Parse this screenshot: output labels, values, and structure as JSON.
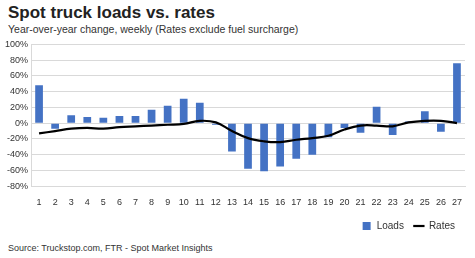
{
  "chart_data": {
    "type": "bar",
    "title": "Spot truck loads vs. rates",
    "subtitle": "Year-over-year change, weekly (Rates exclude fuel surcharge)",
    "source": "Source: Truckstop.com, FTR - Spot Market Insights",
    "categories": [
      "1",
      "2",
      "3",
      "4",
      "5",
      "6",
      "7",
      "8",
      "9",
      "10",
      "11",
      "12",
      "13",
      "14",
      "15",
      "16",
      "17",
      "18",
      "19",
      "20",
      "21",
      "22",
      "23",
      "24",
      "25",
      "26",
      "27"
    ],
    "series": [
      {
        "name": "Loads",
        "type": "bar",
        "color": "#4472c4",
        "values": [
          48,
          -7,
          10,
          8,
          7,
          9,
          9,
          17,
          22,
          31,
          26,
          -2,
          -36,
          -58,
          -61,
          -55,
          -45,
          -40,
          -18,
          -6,
          -12,
          21,
          -15,
          2,
          15,
          -11,
          76
        ]
      },
      {
        "name": "Rates",
        "type": "line",
        "color": "#000000",
        "marker": "none",
        "line_style": "solid",
        "values": [
          -13,
          -10,
          -7,
          -6,
          -7,
          -5,
          -4,
          -3,
          -2,
          -1,
          3,
          1,
          -10,
          -19,
          -23,
          -24,
          -21,
          -19,
          -16,
          -8,
          -3,
          -3,
          -4,
          1,
          3,
          3,
          0
        ]
      }
    ],
    "ylim": [
      -80,
      100
    ],
    "yticks": [
      {
        "value": -80,
        "label": "-80%"
      },
      {
        "value": -60,
        "label": "-60%"
      },
      {
        "value": -40,
        "label": "-40%"
      },
      {
        "value": -20,
        "label": "-20%"
      },
      {
        "value": 0,
        "label": "0%"
      },
      {
        "value": 20,
        "label": "20%"
      },
      {
        "value": 40,
        "label": "40%"
      },
      {
        "value": 60,
        "label": "60%"
      },
      {
        "value": 80,
        "label": "80%"
      },
      {
        "value": 100,
        "label": "100%"
      }
    ],
    "grid": true,
    "legend": "bottom-right"
  }
}
